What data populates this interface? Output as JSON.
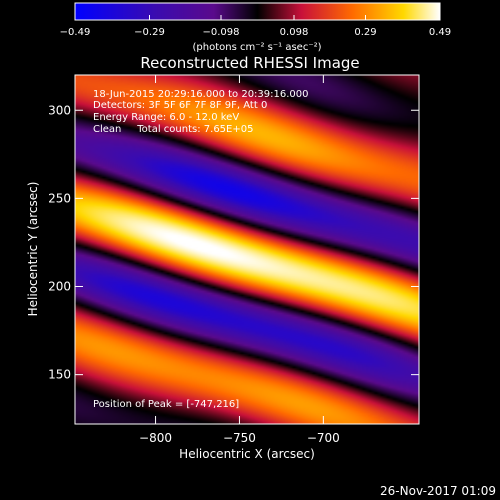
{
  "chart_data": {
    "type": "heatmap",
    "title": "Reconstructed RHESSI Image",
    "xlabel": "Heliocentric X (arcsec)",
    "ylabel": "Heliocentric Y (arcsec)",
    "xlim": [
      -848,
      -643
    ],
    "ylim": [
      122,
      320
    ],
    "x_ticks": [
      -800,
      -750,
      -700
    ],
    "x_tick_labels": [
      "−800",
      "−750",
      "−700"
    ],
    "y_ticks": [
      150,
      200,
      250,
      300
    ],
    "y_tick_labels": [
      "150",
      "200",
      "250",
      "300"
    ],
    "colorbar": {
      "range": [
        -0.49,
        0.49
      ],
      "ticks": [
        -0.49,
        -0.29,
        -0.098,
        0.098,
        0.29,
        0.49
      ],
      "tick_labels": [
        "−0.49",
        "−0.29",
        "−0.098",
        "0.098",
        "0.29",
        "0.49"
      ],
      "label": "(photons cm⁻² s⁻¹ asec⁻²)",
      "colormap": [
        "#0000ff",
        "#3a0bb0",
        "#5a0a8c",
        "#000000",
        "#c8103a",
        "#ff6a00",
        "#ffd800",
        "#ffffff"
      ]
    },
    "info_lines": [
      "18-Jun-2015 20:29:16.000 to 20:39:16.000",
      "Detectors: 3F 5F 6F 7F 8F 9F, Att 0",
      "Energy Range: 6.0 - 12.0 keV",
      "Clean     Total counts: 7.65E+05"
    ],
    "peak_label": "Position of Peak = [-747,216]",
    "peak_position": [
      -747,
      216
    ]
  },
  "footer": {
    "timestamp": "26-Nov-2017 01:09"
  }
}
